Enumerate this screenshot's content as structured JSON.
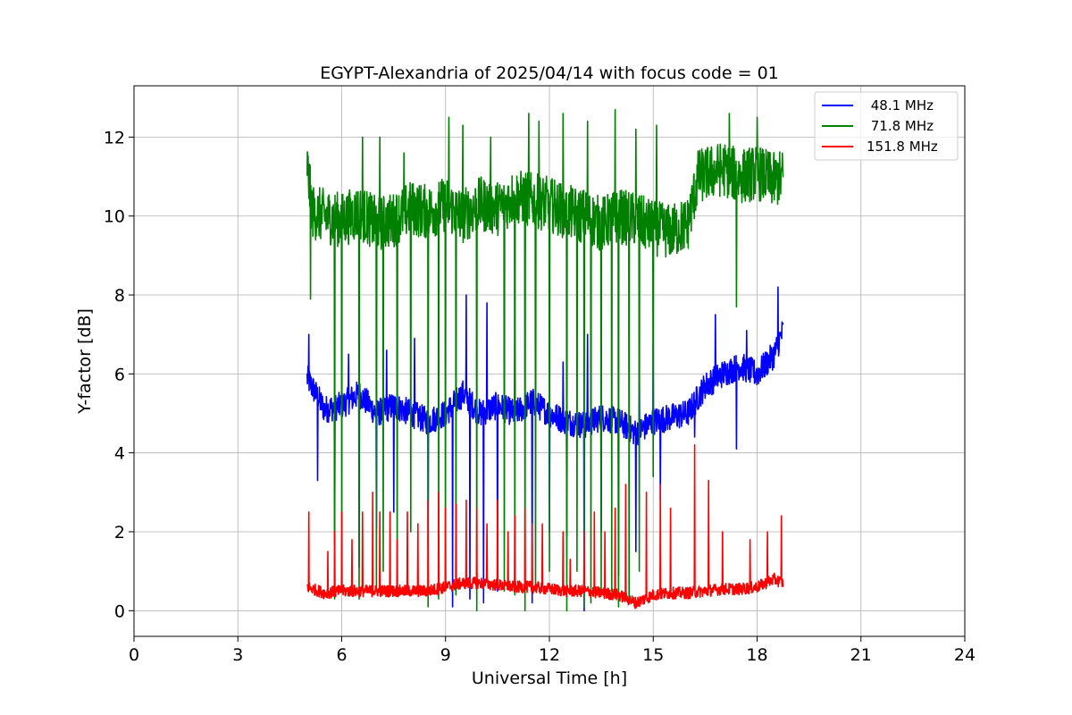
{
  "chart_data": {
    "type": "line",
    "title": "EGYPT-Alexandria of 2025/04/14 with focus code = 01",
    "xlabel": "Universal Time [h]",
    "ylabel": "Y-factor [dB]",
    "xlim": [
      0,
      24
    ],
    "ylim": [
      -0.65,
      13.3
    ],
    "xticks": [
      0,
      3,
      6,
      9,
      12,
      15,
      18,
      21,
      24
    ],
    "yticks": [
      0,
      2,
      4,
      6,
      8,
      10,
      12
    ],
    "grid": true,
    "legend_position": "top-right",
    "series": [
      {
        "name": " 48.1 MHz",
        "color": "#0000ff",
        "base": [
          [
            5.0,
            5.9
          ],
          [
            5.5,
            5.1
          ],
          [
            6.0,
            5.2
          ],
          [
            6.5,
            5.5
          ],
          [
            7.0,
            5.0
          ],
          [
            7.5,
            5.2
          ],
          [
            8.0,
            5.0
          ],
          [
            8.5,
            4.8
          ],
          [
            9.0,
            5.0
          ],
          [
            9.5,
            5.5
          ],
          [
            10.0,
            5.0
          ],
          [
            10.5,
            5.2
          ],
          [
            11.0,
            5.0
          ],
          [
            11.5,
            5.3
          ],
          [
            12.0,
            5.0
          ],
          [
            12.5,
            4.8
          ],
          [
            13.0,
            4.7
          ],
          [
            13.5,
            4.9
          ],
          [
            14.0,
            4.8
          ],
          [
            14.5,
            4.5
          ],
          [
            15.0,
            4.8
          ],
          [
            15.5,
            4.9
          ],
          [
            16.0,
            5.0
          ],
          [
            16.5,
            5.7
          ],
          [
            17.0,
            6.0
          ],
          [
            17.5,
            6.2
          ],
          [
            18.0,
            6.0
          ],
          [
            18.5,
            6.5
          ],
          [
            18.75,
            7.1
          ]
        ],
        "noise": 0.35,
        "spikes_down": [
          [
            5.3,
            3.3
          ],
          [
            5.8,
            1.7
          ],
          [
            6.5,
            1.1
          ],
          [
            7.0,
            2.1
          ],
          [
            7.5,
            2.5
          ],
          [
            8.5,
            1.6
          ],
          [
            9.2,
            0.1
          ],
          [
            9.7,
            0.3
          ],
          [
            10.1,
            0.2
          ],
          [
            10.5,
            0.5
          ],
          [
            11.0,
            0.1
          ],
          [
            11.5,
            0.2
          ],
          [
            12.0,
            2.0
          ],
          [
            12.5,
            1.9
          ],
          [
            13.0,
            0.0
          ],
          [
            13.5,
            2.0
          ],
          [
            14.0,
            0.9
          ],
          [
            14.5,
            1.5
          ],
          [
            15.2,
            2.8
          ],
          [
            16.2,
            4.4
          ],
          [
            17.4,
            4.1
          ]
        ],
        "spikes_up": [
          [
            5.05,
            7.0
          ],
          [
            6.2,
            6.5
          ],
          [
            7.3,
            6.6
          ],
          [
            8.1,
            6.9
          ],
          [
            8.8,
            6.1
          ],
          [
            9.6,
            8.0
          ],
          [
            10.2,
            7.8
          ],
          [
            11.0,
            7.1
          ],
          [
            12.4,
            6.3
          ],
          [
            13.1,
            7.0
          ],
          [
            14.6,
            6.2
          ],
          [
            15.0,
            6.8
          ],
          [
            16.8,
            7.5
          ],
          [
            17.7,
            7.1
          ],
          [
            18.6,
            8.2
          ]
        ]
      },
      {
        "name": " 71.8 MHz",
        "color": "#008000",
        "base": [
          [
            5.0,
            11.3
          ],
          [
            5.15,
            10.1
          ],
          [
            5.5,
            10.0
          ],
          [
            6.0,
            9.9
          ],
          [
            6.5,
            10.1
          ],
          [
            7.0,
            9.8
          ],
          [
            7.5,
            9.9
          ],
          [
            8.0,
            10.2
          ],
          [
            8.5,
            10.1
          ],
          [
            9.0,
            10.3
          ],
          [
            9.5,
            10.0
          ],
          [
            10.0,
            10.3
          ],
          [
            10.5,
            10.2
          ],
          [
            11.0,
            10.5
          ],
          [
            11.5,
            10.4
          ],
          [
            12.0,
            10.3
          ],
          [
            12.5,
            10.1
          ],
          [
            13.0,
            10.0
          ],
          [
            13.5,
            9.8
          ],
          [
            14.0,
            10.0
          ],
          [
            14.5,
            9.9
          ],
          [
            15.0,
            9.7
          ],
          [
            15.5,
            9.6
          ],
          [
            16.0,
            9.8
          ],
          [
            16.3,
            11.0
          ],
          [
            17.0,
            11.2
          ],
          [
            17.5,
            11.0
          ],
          [
            18.0,
            11.1
          ],
          [
            18.5,
            10.9
          ],
          [
            18.75,
            11.0
          ]
        ],
        "noise": 0.7,
        "spikes_down": [
          [
            5.1,
            7.9
          ],
          [
            5.8,
            0.3
          ],
          [
            6.0,
            0.5
          ],
          [
            6.5,
            0.3
          ],
          [
            7.0,
            0.5
          ],
          [
            7.2,
            1.0
          ],
          [
            7.6,
            0.7
          ],
          [
            8.0,
            2.0
          ],
          [
            8.5,
            0.1
          ],
          [
            8.8,
            0.3
          ],
          [
            9.0,
            0.7
          ],
          [
            9.3,
            0.4
          ],
          [
            9.5,
            0.2
          ],
          [
            9.9,
            0.0
          ],
          [
            10.3,
            1.2
          ],
          [
            10.7,
            0.5
          ],
          [
            11.0,
            0.4
          ],
          [
            11.3,
            0.0
          ],
          [
            11.6,
            0.5
          ],
          [
            12.0,
            1.0
          ],
          [
            12.5,
            0.0
          ],
          [
            12.8,
            1.0
          ],
          [
            13.0,
            0.1
          ],
          [
            13.2,
            0.2
          ],
          [
            13.5,
            0.4
          ],
          [
            13.8,
            0.5
          ],
          [
            14.0,
            0.1
          ],
          [
            14.3,
            0.2
          ],
          [
            14.6,
            1.0
          ],
          [
            15.0,
            3.4
          ],
          [
            17.4,
            7.7
          ]
        ],
        "spikes_up": [
          [
            6.6,
            12.0
          ],
          [
            7.1,
            12.0
          ],
          [
            7.8,
            11.6
          ],
          [
            9.1,
            12.5
          ],
          [
            9.5,
            12.3
          ],
          [
            10.3,
            12.0
          ],
          [
            11.4,
            12.6
          ],
          [
            11.7,
            12.4
          ],
          [
            12.4,
            12.6
          ],
          [
            13.1,
            12.4
          ],
          [
            13.9,
            12.7
          ],
          [
            14.5,
            12.2
          ],
          [
            15.1,
            12.3
          ],
          [
            17.2,
            12.6
          ],
          [
            18.0,
            12.5
          ]
        ]
      },
      {
        "name": "151.8 MHz",
        "color": "#ff0000",
        "base": [
          [
            5.0,
            0.6
          ],
          [
            5.5,
            0.45
          ],
          [
            6.0,
            0.5
          ],
          [
            6.5,
            0.5
          ],
          [
            7.0,
            0.5
          ],
          [
            7.5,
            0.5
          ],
          [
            8.0,
            0.5
          ],
          [
            8.5,
            0.5
          ],
          [
            9.0,
            0.6
          ],
          [
            9.5,
            0.7
          ],
          [
            10.0,
            0.7
          ],
          [
            10.5,
            0.65
          ],
          [
            11.0,
            0.6
          ],
          [
            11.5,
            0.6
          ],
          [
            12.0,
            0.55
          ],
          [
            12.5,
            0.5
          ],
          [
            13.0,
            0.5
          ],
          [
            13.5,
            0.45
          ],
          [
            14.0,
            0.4
          ],
          [
            14.5,
            0.2
          ],
          [
            15.0,
            0.4
          ],
          [
            15.5,
            0.45
          ],
          [
            16.0,
            0.45
          ],
          [
            16.5,
            0.5
          ],
          [
            17.0,
            0.55
          ],
          [
            17.5,
            0.55
          ],
          [
            18.0,
            0.6
          ],
          [
            18.5,
            0.8
          ],
          [
            18.75,
            0.7
          ]
        ],
        "noise": 0.15,
        "spikes_up": [
          [
            5.05,
            2.5
          ],
          [
            5.6,
            1.5
          ],
          [
            5.8,
            2.0
          ],
          [
            6.0,
            2.5
          ],
          [
            6.3,
            1.8
          ],
          [
            6.6,
            2.5
          ],
          [
            6.9,
            3.0
          ],
          [
            7.1,
            2.5
          ],
          [
            7.4,
            2.5
          ],
          [
            7.6,
            1.8
          ],
          [
            7.9,
            2.5
          ],
          [
            8.2,
            2.2
          ],
          [
            8.5,
            2.8
          ],
          [
            8.8,
            3.0
          ],
          [
            9.0,
            2.6
          ],
          [
            9.3,
            2.7
          ],
          [
            9.6,
            2.8
          ],
          [
            9.9,
            2.6
          ],
          [
            10.2,
            2.2
          ],
          [
            10.5,
            2.8
          ],
          [
            10.8,
            2.0
          ],
          [
            11.0,
            2.4
          ],
          [
            11.3,
            2.6
          ],
          [
            11.5,
            2.2
          ],
          [
            11.8,
            2.2
          ],
          [
            12.4,
            2.0
          ],
          [
            12.6,
            1.3
          ],
          [
            13.0,
            2.0
          ],
          [
            13.3,
            2.5
          ],
          [
            13.6,
            2.0
          ],
          [
            13.9,
            2.6
          ],
          [
            14.2,
            3.2
          ],
          [
            14.8,
            3.0
          ],
          [
            15.2,
            3.2
          ],
          [
            15.5,
            2.6
          ],
          [
            16.2,
            4.2
          ],
          [
            16.6,
            3.3
          ],
          [
            17.0,
            2.0
          ],
          [
            17.8,
            1.8
          ],
          [
            18.3,
            2.0
          ],
          [
            18.7,
            2.4
          ]
        ]
      }
    ]
  }
}
